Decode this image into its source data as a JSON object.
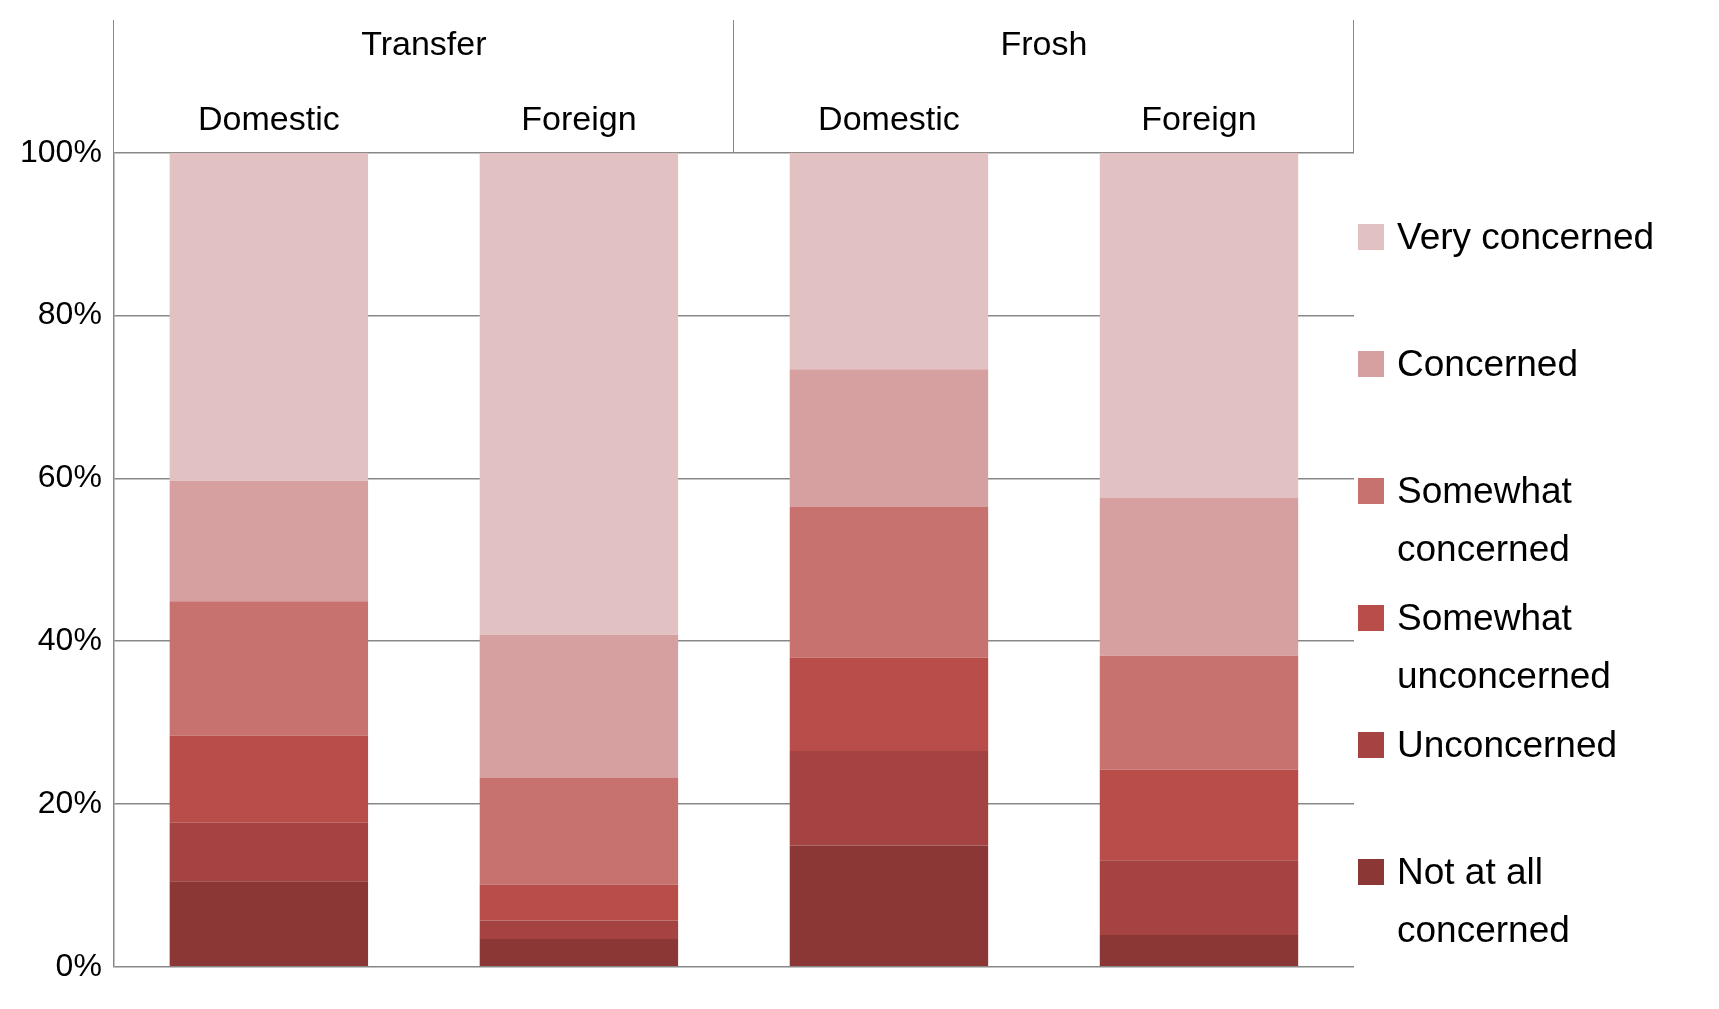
{
  "chart_data": {
    "type": "bar",
    "stacked": true,
    "categories": [
      "Domestic",
      "Foreign",
      "Domestic",
      "Foreign"
    ],
    "annotations": [
      "Transfer",
      "Frosh"
    ],
    "series": [
      {
        "name": "Not at all concerned",
        "color": "#8b3735",
        "values": [
          10.5,
          3.4,
          14.9,
          3.9
        ]
      },
      {
        "name": "Unconcerned",
        "color": "#a44341",
        "values": [
          7.2,
          2.3,
          11.6,
          9.2
        ]
      },
      {
        "name": "Somewhat unconcerned",
        "color": "#b84d4a",
        "values": [
          10.7,
          4.4,
          11.5,
          11.1
        ]
      },
      {
        "name": "Somewhat concerned",
        "color": "#c87270",
        "values": [
          16.5,
          13.1,
          18.5,
          14.0
        ]
      },
      {
        "name": "Concerned",
        "color": "#d6a0a0",
        "values": [
          14.8,
          17.6,
          16.9,
          19.4
        ]
      },
      {
        "name": "Very concerned",
        "color": "#e2c1c3",
        "values": [
          40.3,
          59.2,
          26.6,
          42.4
        ]
      }
    ],
    "ylim": [
      0,
      100
    ],
    "yticks": [
      {
        "value": 0,
        "label": "0%"
      },
      {
        "value": 20,
        "label": "20%"
      },
      {
        "value": 40,
        "label": "40%"
      },
      {
        "value": 60,
        "label": "60%"
      },
      {
        "value": 80,
        "label": "80%"
      },
      {
        "value": 100,
        "label": "100%"
      }
    ],
    "grid": "y",
    "legend": "right"
  }
}
